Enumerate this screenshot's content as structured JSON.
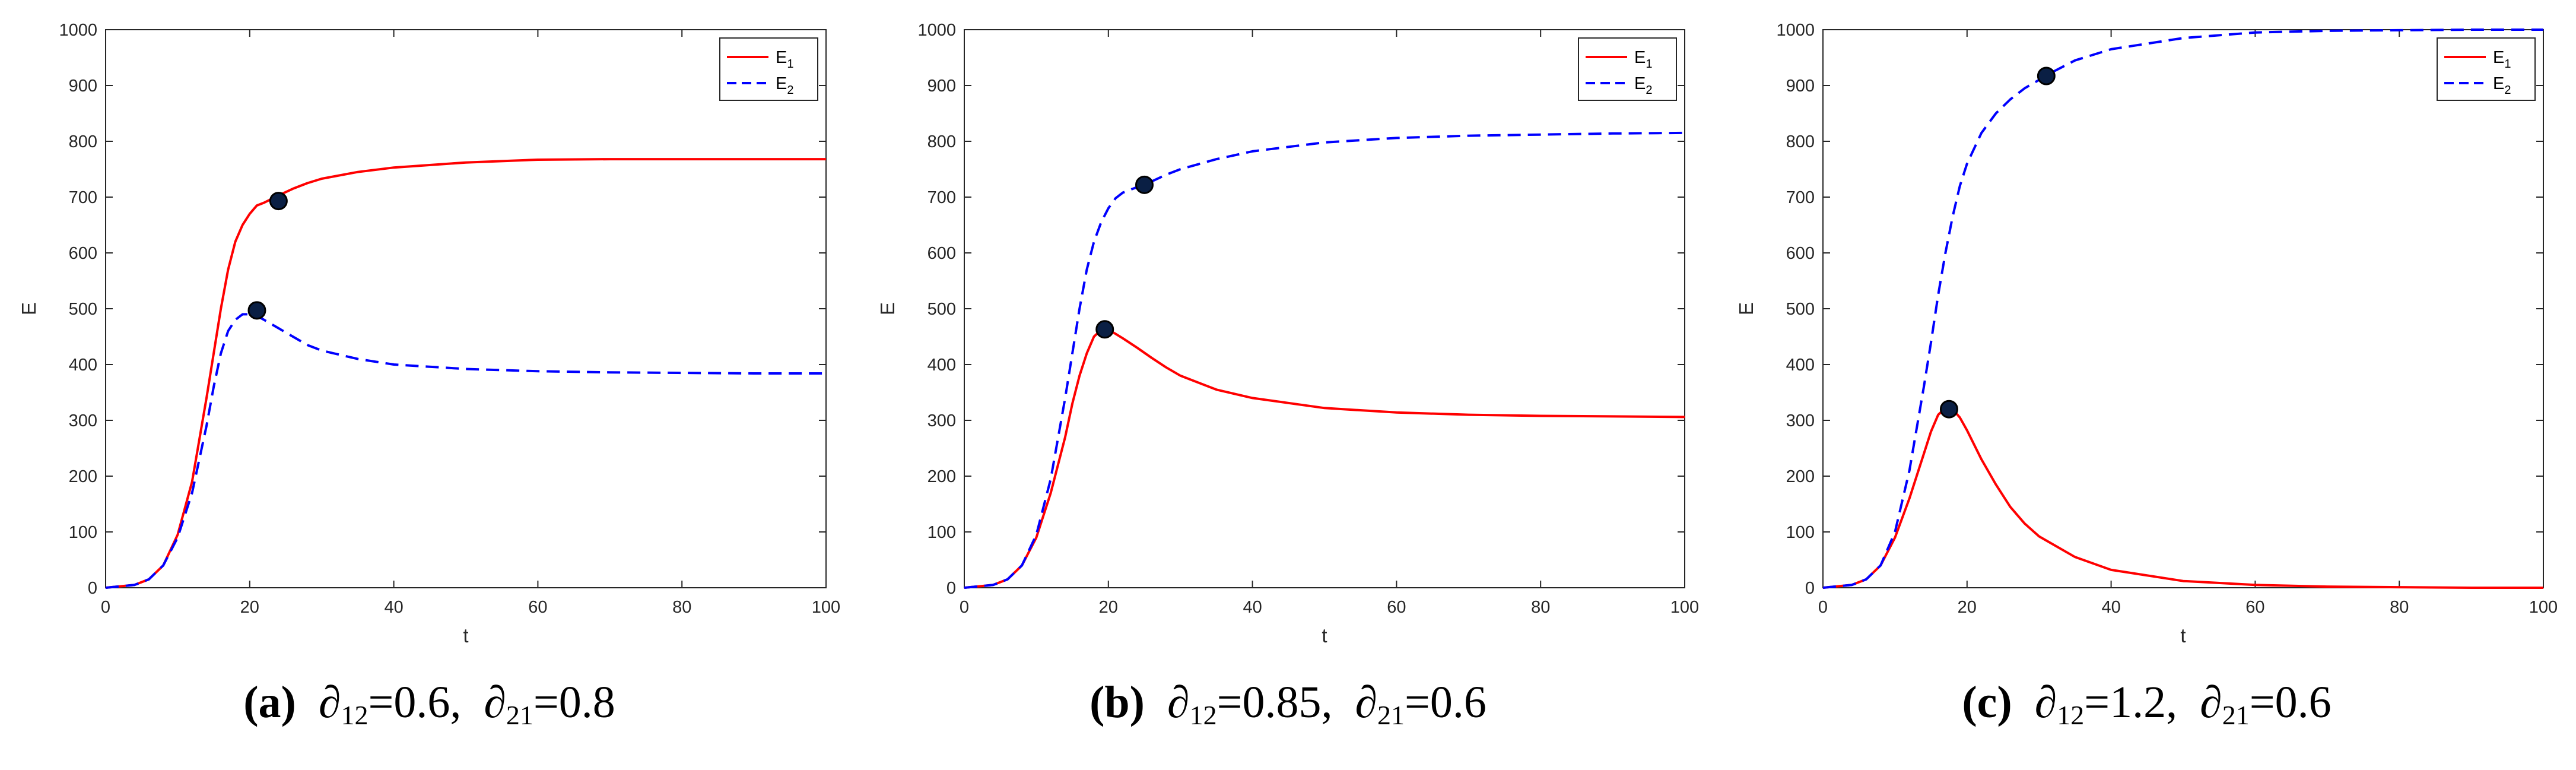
{
  "chart_data": [
    {
      "type": "line",
      "panel_id": "a",
      "caption": {
        "letter": "(a)",
        "p1_symbol": "∂",
        "p1_sub": "12",
        "p1_value": "0.6",
        "p2_symbol": "∂",
        "p2_sub": "21",
        "p2_value": "0.8"
      },
      "xlabel": "t",
      "ylabel": "E",
      "xlim": [
        0,
        100
      ],
      "ylim": [
        0,
        1000
      ],
      "xticks": [
        0,
        20,
        40,
        60,
        80,
        100
      ],
      "yticks": [
        0,
        100,
        200,
        300,
        400,
        500,
        600,
        700,
        800,
        900,
        1000
      ],
      "legend_position": "top-right",
      "series": [
        {
          "name": "E",
          "name_sub": "1",
          "color": "#ff0000",
          "dash": "solid",
          "x": [
            0,
            4,
            6,
            8,
            10,
            12,
            14,
            15,
            16,
            17,
            18,
            19,
            20,
            21,
            22,
            24,
            26,
            28,
            30,
            35,
            40,
            50,
            60,
            70,
            80,
            90,
            100
          ],
          "y": [
            0,
            5,
            15,
            40,
            95,
            190,
            340,
            420,
            500,
            570,
            620,
            650,
            670,
            685,
            690,
            703,
            715,
            725,
            733,
            745,
            753,
            762,
            767,
            768,
            768,
            768,
            768
          ]
        },
        {
          "name": "E",
          "name_sub": "2",
          "color": "#0000ff",
          "dash": "dashed",
          "x": [
            0,
            4,
            6,
            8,
            10,
            12,
            14,
            15,
            16,
            17,
            18,
            19,
            20,
            21,
            22,
            24,
            26,
            28,
            30,
            35,
            40,
            50,
            60,
            70,
            80,
            90,
            100
          ],
          "y": [
            0,
            5,
            15,
            40,
            90,
            170,
            290,
            360,
            420,
            460,
            480,
            490,
            490,
            487,
            480,
            465,
            450,
            435,
            425,
            410,
            400,
            392,
            388,
            386,
            385,
            384,
            384
          ]
        }
      ],
      "markers": [
        {
          "x": 24,
          "y": 693
        },
        {
          "x": 21,
          "y": 497
        }
      ]
    },
    {
      "type": "line",
      "panel_id": "b",
      "caption": {
        "letter": "(b)",
        "p1_symbol": "∂",
        "p1_sub": "12",
        "p1_value": "0.85",
        "p2_symbol": "∂",
        "p2_sub": "21",
        "p2_value": "0.6"
      },
      "xlabel": "t",
      "ylabel": "E",
      "xlim": [
        0,
        100
      ],
      "ylim": [
        0,
        1000
      ],
      "xticks": [
        0,
        20,
        40,
        60,
        80,
        100
      ],
      "yticks": [
        0,
        100,
        200,
        300,
        400,
        500,
        600,
        700,
        800,
        900,
        1000
      ],
      "legend_position": "top-right",
      "series": [
        {
          "name": "E",
          "name_sub": "1",
          "color": "#ff0000",
          "dash": "solid",
          "x": [
            0,
            4,
            6,
            8,
            10,
            12,
            14,
            15,
            16,
            17,
            18,
            19,
            20,
            21,
            22,
            24,
            26,
            28,
            30,
            35,
            40,
            50,
            60,
            70,
            80,
            90,
            100
          ],
          "y": [
            0,
            5,
            15,
            40,
            90,
            170,
            270,
            330,
            380,
            420,
            450,
            462,
            462,
            455,
            447,
            430,
            412,
            395,
            380,
            355,
            340,
            322,
            314,
            310,
            308,
            307,
            306
          ]
        },
        {
          "name": "E",
          "name_sub": "2",
          "color": "#0000ff",
          "dash": "dashed",
          "x": [
            0,
            4,
            6,
            8,
            10,
            12,
            14,
            15,
            16,
            17,
            18,
            19,
            20,
            21,
            22,
            24,
            26,
            28,
            30,
            35,
            40,
            50,
            60,
            70,
            80,
            90,
            100
          ],
          "y": [
            0,
            5,
            15,
            40,
            95,
            195,
            340,
            420,
            500,
            570,
            620,
            655,
            680,
            698,
            708,
            718,
            728,
            740,
            750,
            768,
            782,
            798,
            806,
            810,
            812,
            814,
            815
          ]
        }
      ],
      "markers": [
        {
          "x": 25,
          "y": 722
        },
        {
          "x": 19.5,
          "y": 463
        }
      ]
    },
    {
      "type": "line",
      "panel_id": "c",
      "caption": {
        "letter": "(c)",
        "p1_symbol": "∂",
        "p1_sub": "12",
        "p1_value": "1.2",
        "p2_symbol": "∂",
        "p2_sub": "21",
        "p2_value": "0.6"
      },
      "xlabel": "t",
      "ylabel": "E",
      "xlim": [
        0,
        100
      ],
      "ylim": [
        0,
        1000
      ],
      "xticks": [
        0,
        20,
        40,
        60,
        80,
        100
      ],
      "yticks": [
        0,
        100,
        200,
        300,
        400,
        500,
        600,
        700,
        800,
        900,
        1000
      ],
      "legend_position": "top-right",
      "series": [
        {
          "name": "E",
          "name_sub": "1",
          "color": "#ff0000",
          "dash": "solid",
          "x": [
            0,
            4,
            6,
            8,
            10,
            12,
            14,
            15,
            16,
            17,
            18,
            19,
            20,
            22,
            24,
            26,
            28,
            30,
            35,
            40,
            50,
            60,
            70,
            80,
            90,
            100
          ],
          "y": [
            0,
            5,
            15,
            40,
            90,
            160,
            240,
            280,
            310,
            322,
            320,
            305,
            282,
            230,
            185,
            145,
            115,
            92,
            55,
            32,
            12,
            5,
            2,
            1,
            0,
            0
          ]
        },
        {
          "name": "E",
          "name_sub": "2",
          "color": "#0000ff",
          "dash": "dashed",
          "x": [
            0,
            4,
            6,
            8,
            10,
            12,
            14,
            15,
            16,
            17,
            18,
            19,
            20,
            22,
            24,
            26,
            28,
            30,
            32,
            35,
            40,
            50,
            60,
            70,
            80,
            90,
            100
          ],
          "y": [
            0,
            5,
            15,
            40,
            100,
            210,
            360,
            440,
            525,
            600,
            665,
            720,
            760,
            815,
            850,
            875,
            895,
            910,
            925,
            945,
            965,
            985,
            995,
            998,
            999,
            1000,
            1000
          ]
        }
      ],
      "markers": [
        {
          "x": 31,
          "y": 917
        },
        {
          "x": 17.5,
          "y": 320
        }
      ]
    }
  ]
}
